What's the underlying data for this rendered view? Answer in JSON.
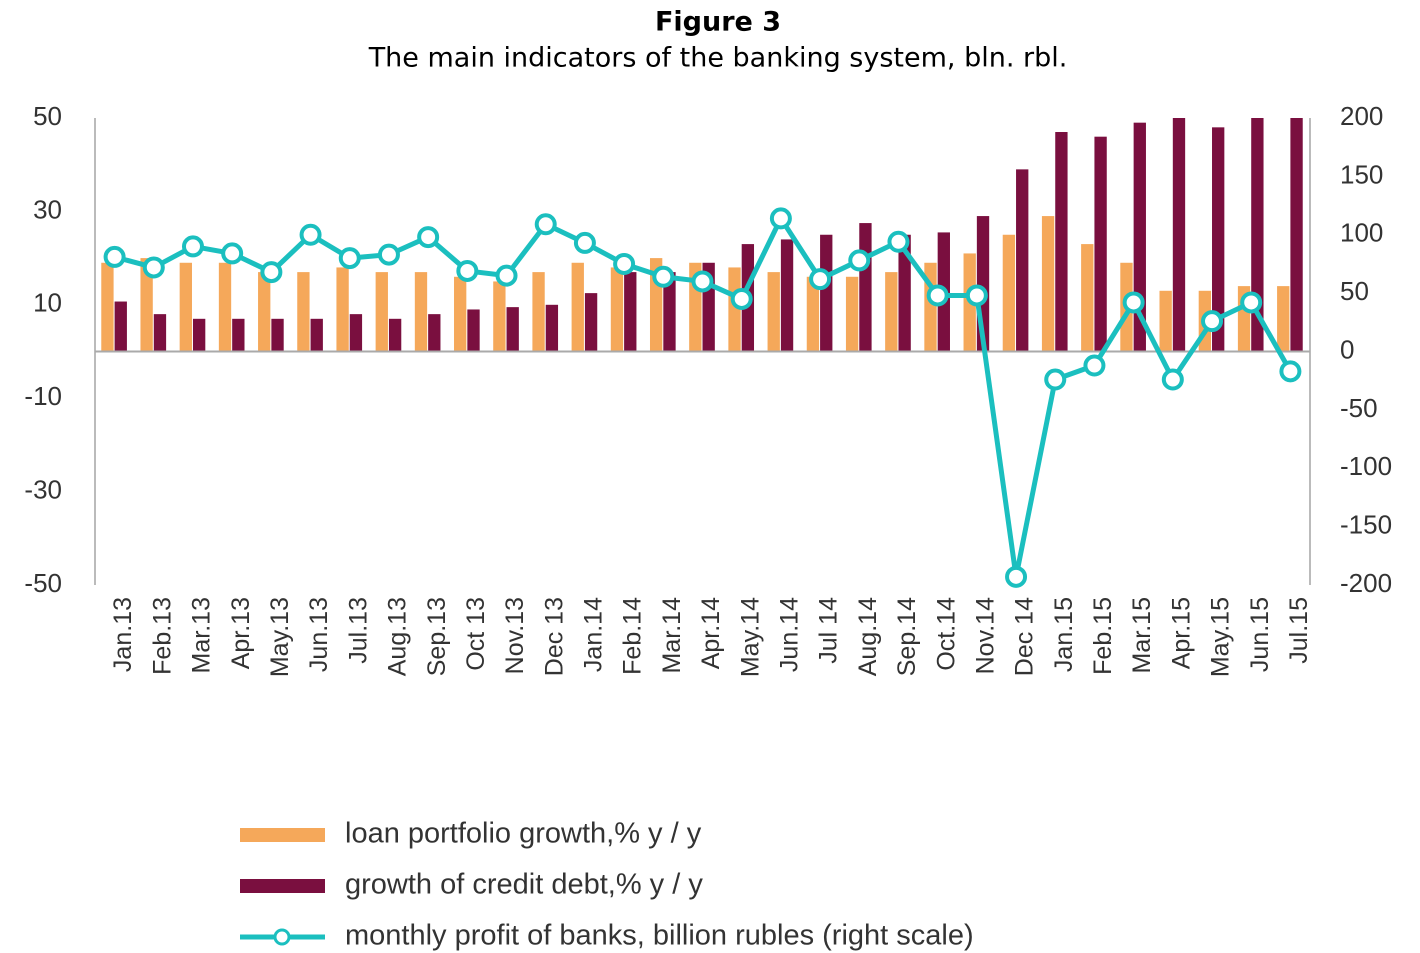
{
  "chart_data": {
    "type": "bar_line",
    "title": "Figure 3",
    "subtitle": "The main indicators of the banking system, bln. rbl.",
    "categories": [
      "Jan.13",
      "Feb.13",
      "Mar.13",
      "Apr.13",
      "May.13",
      "Jun.13",
      "Jul.13",
      "Aug.13",
      "Sep.13",
      "Oct 13",
      "Nov.13",
      "Dec 13",
      "Jan.14",
      "Feb.14",
      "Mar.14",
      "Apr.14",
      "May.14",
      "Jun.14",
      "Jul 14",
      "Aug.14",
      "Sep.14",
      "Oct.14",
      "Nov.14",
      "Dec 14",
      "Jan.15",
      "Feb.15",
      "Mar.15",
      "Apr.15",
      "May.15",
      "Jun.15",
      "Jul.15"
    ],
    "series": [
      {
        "name": "loan portfolio growth,% y / y",
        "color": "#f5a85a",
        "kind": "bar",
        "values": [
          19,
          20,
          19,
          19,
          17,
          17,
          18,
          17,
          17,
          16,
          15,
          17,
          19,
          18,
          20,
          19,
          18,
          17,
          16,
          16,
          17,
          19,
          21,
          25,
          29,
          23,
          19,
          13,
          13,
          14,
          14
        ]
      },
      {
        "name": "growth of credit debt,% y / y",
        "color": "#7a0f3f",
        "kind": "bar",
        "values": [
          10.7,
          8,
          7,
          7,
          7,
          7,
          8,
          7,
          8,
          9,
          9.5,
          10,
          12.5,
          17,
          17,
          19,
          23,
          24,
          25,
          27.5,
          25,
          25.5,
          29,
          39,
          47,
          46,
          49,
          50,
          48,
          50,
          50
        ]
      },
      {
        "name": "monthly profit of banks, billion rubles (right scale)",
        "color": "#1bbfbf",
        "kind": "line",
        "axis": "y2",
        "values": [
          81,
          72,
          90,
          84,
          68,
          100,
          80,
          83,
          98,
          69,
          65,
          109,
          93,
          75,
          64,
          60,
          45,
          114,
          62,
          78,
          94,
          48,
          48,
          -193,
          -24,
          -12,
          42,
          -24,
          26,
          42,
          -17
        ]
      }
    ],
    "ylim": [
      -50,
      50
    ],
    "yticks": [
      50,
      30,
      10,
      -10,
      -30,
      -50
    ],
    "y2lim": [
      -200,
      200
    ],
    "y2ticks": [
      200,
      150,
      100,
      50,
      0,
      -50,
      -100,
      -150,
      -200
    ]
  }
}
